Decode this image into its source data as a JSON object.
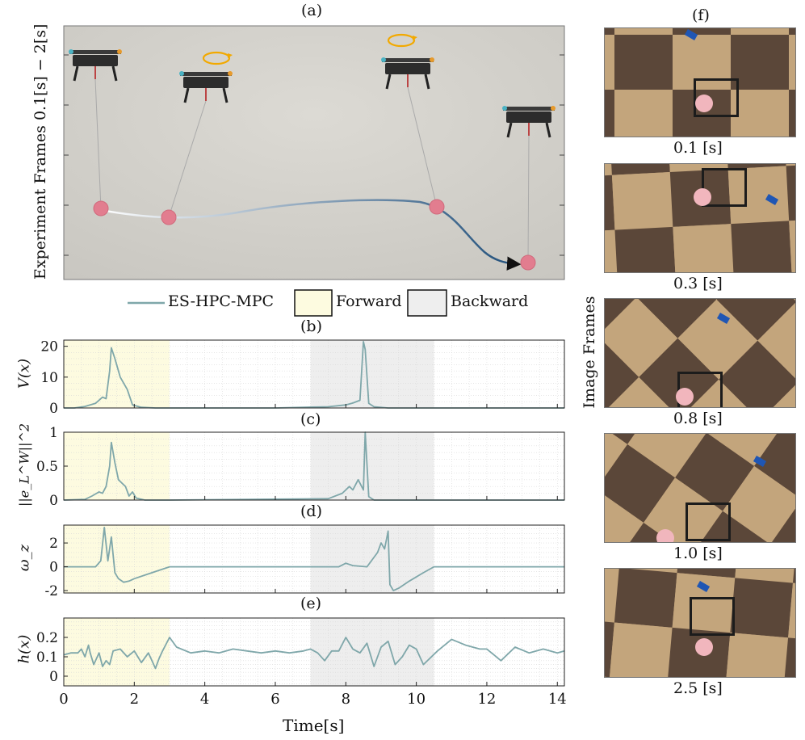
{
  "panel_labels": {
    "a": "(a)",
    "b": "(b)",
    "c": "(c)",
    "d": "(d)",
    "e": "(e)",
    "f": "(f)"
  },
  "photo_panel": {
    "ylabel": "Experiment Frames 0.1[s] − 2[s]",
    "background_color": "#c9c7c1",
    "trajectory_start_color": "#ffffff",
    "trajectory_end_color": "#1f4e7a",
    "payload_color": "#e27d8f",
    "rotation_arrow_color": "#f2a900"
  },
  "legend": {
    "items": [
      {
        "label": "ES-HPC-MPC",
        "kind": "line",
        "color": "#7fa7aa"
      },
      {
        "label": "Forward",
        "kind": "box",
        "color": "#fdfbe0"
      },
      {
        "label": "Backward",
        "kind": "box",
        "color": "#eeeeee"
      }
    ]
  },
  "image_frames": {
    "ylabel": "Image Frames",
    "frames": [
      {
        "time": "0.1",
        "unit": "s"
      },
      {
        "time": "0.3",
        "unit": "s"
      },
      {
        "time": "0.8",
        "unit": "s"
      },
      {
        "time": "1.0",
        "unit": "s"
      },
      {
        "time": "2.5",
        "unit": "s"
      }
    ],
    "floor_colors": {
      "light": "#c3a57c",
      "dark": "#5b4739",
      "marker": "#1f56b4",
      "ball": "#f1b6bd"
    }
  },
  "x_axis": {
    "label": "Time",
    "unit": "[s]",
    "ticks": [
      "0",
      "2",
      "4",
      "6",
      "8",
      "10",
      "12",
      "14"
    ]
  },
  "chart_data": [
    {
      "id": "b",
      "type": "line",
      "ylabel": "V(x)",
      "series": [
        {
          "name": "ES-HPC-MPC",
          "color": "#7fa7aa"
        }
      ],
      "xlim": [
        0,
        14.2
      ],
      "ylim": [
        0,
        22
      ],
      "yticks": [
        0,
        10,
        20
      ],
      "grid": true,
      "shaded": [
        {
          "x": [
            0,
            3
          ],
          "label": "Forward",
          "color": "#fdfbe0"
        },
        {
          "x": [
            7,
            10.5
          ],
          "label": "Backward",
          "color": "#eeeeee"
        }
      ],
      "x": [
        0,
        0.3,
        0.6,
        0.9,
        1.1,
        1.2,
        1.3,
        1.35,
        1.45,
        1.6,
        1.8,
        1.95,
        2.2,
        2.6,
        3.0,
        4,
        6,
        7.5,
        8.0,
        8.2,
        8.4,
        8.5,
        8.55,
        8.65,
        8.8,
        9.2,
        10,
        11,
        14.2
      ],
      "y": [
        0,
        0,
        0.5,
        1.5,
        3.5,
        3.0,
        12,
        19.5,
        16,
        10,
        6,
        1,
        0.2,
        0,
        0,
        0,
        0,
        0.4,
        1.0,
        1.6,
        2.5,
        21.5,
        19,
        1.5,
        0.4,
        0,
        0,
        0,
        0
      ]
    },
    {
      "id": "c",
      "type": "line",
      "ylabel": "||e_L^W||^2",
      "series": [
        {
          "name": "ES-HPC-MPC",
          "color": "#7fa7aa"
        }
      ],
      "xlim": [
        0,
        14.2
      ],
      "ylim": [
        0,
        1
      ],
      "yticks": [
        0,
        0.5,
        1
      ],
      "grid": true,
      "shaded": [
        {
          "x": [
            0,
            3
          ],
          "label": "Forward",
          "color": "#fdfbe0"
        },
        {
          "x": [
            7,
            10.5
          ],
          "label": "Backward",
          "color": "#eeeeee"
        }
      ],
      "x": [
        0,
        0.6,
        0.8,
        1.0,
        1.1,
        1.2,
        1.3,
        1.35,
        1.45,
        1.55,
        1.65,
        1.75,
        1.85,
        1.95,
        2.05,
        2.3,
        3,
        7.5,
        7.9,
        8.1,
        8.2,
        8.35,
        8.5,
        8.55,
        8.65,
        8.8,
        9.2,
        14.2
      ],
      "y": [
        0,
        0.01,
        0.06,
        0.12,
        0.1,
        0.2,
        0.5,
        0.85,
        0.55,
        0.3,
        0.25,
        0.2,
        0.06,
        0.12,
        0.03,
        0,
        0,
        0.02,
        0.1,
        0.2,
        0.15,
        0.3,
        0.15,
        1.0,
        0.05,
        0,
        0,
        0
      ]
    },
    {
      "id": "d",
      "type": "line",
      "ylabel": "ω_z",
      "series": [
        {
          "name": "ES-HPC-MPC",
          "color": "#7fa7aa"
        }
      ],
      "xlim": [
        0,
        14.2
      ],
      "ylim": [
        -2.2,
        3.5
      ],
      "yticks": [
        -2,
        0,
        2
      ],
      "grid": true,
      "shaded": [
        {
          "x": [
            0,
            3
          ],
          "label": "Forward",
          "color": "#fdfbe0"
        },
        {
          "x": [
            7,
            10.5
          ],
          "label": "Backward",
          "color": "#eeeeee"
        }
      ],
      "x": [
        0,
        0.9,
        1.05,
        1.15,
        1.25,
        1.35,
        1.45,
        1.55,
        1.7,
        1.85,
        2.0,
        2.3,
        2.7,
        3.0,
        5,
        7.5,
        7.8,
        8.0,
        8.2,
        8.6,
        8.9,
        9.0,
        9.1,
        9.2,
        9.25,
        9.35,
        9.5,
        9.8,
        10.2,
        10.5,
        12,
        14.2
      ],
      "y": [
        0,
        0,
        0.5,
        3.3,
        0.5,
        2.5,
        -0.5,
        -1.0,
        -1.3,
        -1.2,
        -1.0,
        -0.7,
        -0.3,
        0,
        0,
        0,
        0,
        0.3,
        0.1,
        0,
        1.2,
        2.0,
        1.5,
        3.0,
        -1.5,
        -2.0,
        -1.8,
        -1.2,
        -0.5,
        0,
        0,
        0
      ]
    },
    {
      "id": "e",
      "type": "line",
      "ylabel": "h(x)",
      "xlabel": "Time[s]",
      "series": [
        {
          "name": "ES-HPC-MPC",
          "color": "#7fa7aa"
        }
      ],
      "xlim": [
        0,
        14.2
      ],
      "ylim": [
        -0.05,
        0.3
      ],
      "yticks": [
        0,
        0.1,
        0.2
      ],
      "grid": true,
      "shaded": [
        {
          "x": [
            0,
            3
          ],
          "label": "Forward",
          "color": "#fdfbe0"
        },
        {
          "x": [
            7,
            10.5
          ],
          "label": "Backward",
          "color": "#eeeeee"
        }
      ],
      "x": [
        0,
        0.2,
        0.4,
        0.5,
        0.6,
        0.7,
        0.75,
        0.85,
        0.95,
        1.0,
        1.1,
        1.2,
        1.3,
        1.4,
        1.6,
        1.8,
        2.0,
        2.1,
        2.2,
        2.4,
        2.5,
        2.6,
        2.7,
        2.8,
        3.0,
        3.2,
        3.6,
        4.0,
        4.4,
        4.8,
        5.2,
        5.6,
        6.0,
        6.4,
        6.8,
        7.0,
        7.2,
        7.4,
        7.6,
        7.8,
        8.0,
        8.2,
        8.4,
        8.6,
        8.8,
        9.0,
        9.2,
        9.4,
        9.6,
        9.8,
        10.0,
        10.2,
        10.6,
        11.0,
        11.4,
        11.8,
        12.0,
        12.2,
        12.4,
        12.8,
        13.2,
        13.6,
        14.0,
        14.2
      ],
      "y": [
        0.11,
        0.12,
        0.12,
        0.14,
        0.1,
        0.16,
        0.12,
        0.06,
        0.1,
        0.12,
        0.05,
        0.08,
        0.06,
        0.13,
        0.14,
        0.1,
        0.13,
        0.1,
        0.07,
        0.12,
        0.08,
        0.04,
        0.09,
        0.13,
        0.2,
        0.15,
        0.12,
        0.13,
        0.12,
        0.14,
        0.13,
        0.12,
        0.13,
        0.12,
        0.13,
        0.14,
        0.12,
        0.08,
        0.13,
        0.13,
        0.2,
        0.14,
        0.12,
        0.17,
        0.05,
        0.15,
        0.18,
        0.06,
        0.1,
        0.16,
        0.14,
        0.06,
        0.13,
        0.19,
        0.16,
        0.14,
        0.14,
        0.11,
        0.08,
        0.15,
        0.12,
        0.14,
        0.12,
        0.13
      ]
    }
  ]
}
